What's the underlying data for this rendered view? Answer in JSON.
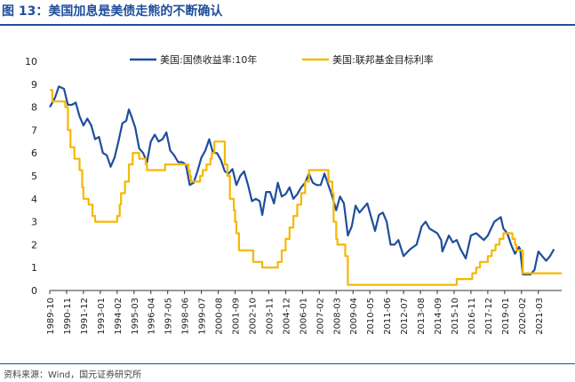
{
  "title": "图 13：美国加息是美债走熊的不断确认",
  "source": "资料来源：Wind，国元证券研究所",
  "chart_data": {
    "type": "line",
    "title": "",
    "xlabel": "",
    "ylabel": "",
    "ylim": [
      0,
      10
    ],
    "yticks": [
      0,
      1,
      2,
      3,
      4,
      5,
      6,
      7,
      8,
      9,
      10
    ],
    "xlim": [
      "1989-10",
      "2022-09"
    ],
    "xticks": [
      "1989-10",
      "1990-11",
      "1991-12",
      "1993-01",
      "1994-02",
      "1995-03",
      "1996-04",
      "1997-05",
      "1998-06",
      "1999-07",
      "2000-08",
      "2001-09",
      "2002-10",
      "2003-11",
      "2004-12",
      "2006-01",
      "2007-02",
      "2008-03",
      "2009-04",
      "2010-05",
      "2011-06",
      "2012-07",
      "2013-08",
      "2014-09",
      "2015-10",
      "2016-11",
      "2017-12",
      "2019-01",
      "2020-02",
      "2021-03"
    ],
    "grid": false,
    "legend_position": "top",
    "series": [
      {
        "name": "美国:国债收益率:10年",
        "color": "#1f4e9c",
        "points": [
          [
            "1989-10",
            8.0
          ],
          [
            "1990-02",
            8.4
          ],
          [
            "1990-05",
            8.9
          ],
          [
            "1990-09",
            8.8
          ],
          [
            "1990-12",
            8.1
          ],
          [
            "1991-03",
            8.1
          ],
          [
            "1991-06",
            8.2
          ],
          [
            "1991-09",
            7.6
          ],
          [
            "1991-12",
            7.2
          ],
          [
            "1992-03",
            7.5
          ],
          [
            "1992-06",
            7.2
          ],
          [
            "1992-09",
            6.6
          ],
          [
            "1992-12",
            6.7
          ],
          [
            "1993-03",
            6.0
          ],
          [
            "1993-06",
            5.9
          ],
          [
            "1993-09",
            5.4
          ],
          [
            "1993-12",
            5.8
          ],
          [
            "1994-03",
            6.5
          ],
          [
            "1994-06",
            7.3
          ],
          [
            "1994-09",
            7.4
          ],
          [
            "1994-11",
            7.9
          ],
          [
            "1995-01",
            7.6
          ],
          [
            "1995-04",
            7.1
          ],
          [
            "1995-07",
            6.2
          ],
          [
            "1995-10",
            6.0
          ],
          [
            "1996-01",
            5.6
          ],
          [
            "1996-04",
            6.5
          ],
          [
            "1996-07",
            6.8
          ],
          [
            "1996-10",
            6.5
          ],
          [
            "1997-01",
            6.6
          ],
          [
            "1997-04",
            6.9
          ],
          [
            "1997-07",
            6.1
          ],
          [
            "1997-10",
            5.9
          ],
          [
            "1998-01",
            5.6
          ],
          [
            "1998-04",
            5.6
          ],
          [
            "1998-07",
            5.5
          ],
          [
            "1998-10",
            4.6
          ],
          [
            "1999-01",
            4.7
          ],
          [
            "1999-04",
            5.2
          ],
          [
            "1999-07",
            5.8
          ],
          [
            "1999-10",
            6.1
          ],
          [
            "2000-01",
            6.6
          ],
          [
            "2000-04",
            6.0
          ],
          [
            "2000-07",
            6.0
          ],
          [
            "2000-10",
            5.7
          ],
          [
            "2001-01",
            5.2
          ],
          [
            "2001-04",
            5.1
          ],
          [
            "2001-07",
            5.3
          ],
          [
            "2001-10",
            4.6
          ],
          [
            "2002-01",
            5.0
          ],
          [
            "2002-04",
            5.2
          ],
          [
            "2002-07",
            4.6
          ],
          [
            "2002-10",
            3.9
          ],
          [
            "2003-01",
            4.0
          ],
          [
            "2003-04",
            3.9
          ],
          [
            "2003-06",
            3.3
          ],
          [
            "2003-09",
            4.3
          ],
          [
            "2003-12",
            4.3
          ],
          [
            "2004-03",
            3.8
          ],
          [
            "2004-06",
            4.7
          ],
          [
            "2004-09",
            4.1
          ],
          [
            "2004-12",
            4.2
          ],
          [
            "2005-03",
            4.5
          ],
          [
            "2005-06",
            4.0
          ],
          [
            "2005-09",
            4.2
          ],
          [
            "2005-12",
            4.5
          ],
          [
            "2006-03",
            4.7
          ],
          [
            "2006-06",
            5.1
          ],
          [
            "2006-09",
            4.7
          ],
          [
            "2006-12",
            4.6
          ],
          [
            "2007-03",
            4.6
          ],
          [
            "2007-06",
            5.1
          ],
          [
            "2007-09",
            4.6
          ],
          [
            "2007-12",
            4.1
          ],
          [
            "2008-03",
            3.5
          ],
          [
            "2008-06",
            4.1
          ],
          [
            "2008-09",
            3.8
          ],
          [
            "2008-12",
            2.4
          ],
          [
            "2009-03",
            2.8
          ],
          [
            "2009-06",
            3.7
          ],
          [
            "2009-09",
            3.4
          ],
          [
            "2009-12",
            3.6
          ],
          [
            "2010-03",
            3.8
          ],
          [
            "2010-06",
            3.2
          ],
          [
            "2010-09",
            2.6
          ],
          [
            "2010-12",
            3.3
          ],
          [
            "2011-03",
            3.4
          ],
          [
            "2011-06",
            3.0
          ],
          [
            "2011-09",
            2.0
          ],
          [
            "2011-12",
            2.0
          ],
          [
            "2012-03",
            2.2
          ],
          [
            "2012-07",
            1.5
          ],
          [
            "2012-12",
            1.8
          ],
          [
            "2013-05",
            2.0
          ],
          [
            "2013-09",
            2.8
          ],
          [
            "2013-12",
            3.0
          ],
          [
            "2014-03",
            2.7
          ],
          [
            "2014-09",
            2.5
          ],
          [
            "2014-12",
            2.2
          ],
          [
            "2015-01",
            1.7
          ],
          [
            "2015-06",
            2.4
          ],
          [
            "2015-09",
            2.1
          ],
          [
            "2015-12",
            2.2
          ],
          [
            "2016-03",
            1.8
          ],
          [
            "2016-07",
            1.4
          ],
          [
            "2016-11",
            2.4
          ],
          [
            "2017-03",
            2.5
          ],
          [
            "2017-09",
            2.2
          ],
          [
            "2017-12",
            2.4
          ],
          [
            "2018-05",
            3.0
          ],
          [
            "2018-10",
            3.2
          ],
          [
            "2018-12",
            2.7
          ],
          [
            "2019-03",
            2.5
          ],
          [
            "2019-06",
            2.0
          ],
          [
            "2019-09",
            1.6
          ],
          [
            "2019-12",
            1.9
          ],
          [
            "2020-01",
            1.8
          ],
          [
            "2020-03",
            0.7
          ],
          [
            "2020-06",
            0.7
          ],
          [
            "2020-09",
            0.7
          ],
          [
            "2020-12",
            0.9
          ],
          [
            "2021-03",
            1.7
          ],
          [
            "2021-06",
            1.5
          ],
          [
            "2021-09",
            1.3
          ],
          [
            "2021-12",
            1.5
          ],
          [
            "2022-03",
            1.8
          ]
        ]
      },
      {
        "name": "美国:联邦基金目标利率",
        "color": "#f5b800",
        "points": [
          [
            "1989-10",
            8.75
          ],
          [
            "1989-12",
            8.25
          ],
          [
            "1990-07",
            8.25
          ],
          [
            "1990-10",
            8.0
          ],
          [
            "1990-12",
            7.0
          ],
          [
            "1991-02",
            6.25
          ],
          [
            "1991-05",
            5.75
          ],
          [
            "1991-09",
            5.25
          ],
          [
            "1991-11",
            4.5
          ],
          [
            "1991-12",
            4.0
          ],
          [
            "1992-04",
            3.75
          ],
          [
            "1992-07",
            3.25
          ],
          [
            "1992-09",
            3.0
          ],
          [
            "1994-01",
            3.0
          ],
          [
            "1994-02",
            3.25
          ],
          [
            "1994-04",
            3.75
          ],
          [
            "1994-05",
            4.25
          ],
          [
            "1994-08",
            4.75
          ],
          [
            "1994-11",
            5.5
          ],
          [
            "1995-02",
            6.0
          ],
          [
            "1995-07",
            5.75
          ],
          [
            "1995-12",
            5.5
          ],
          [
            "1996-01",
            5.25
          ],
          [
            "1997-03",
            5.5
          ],
          [
            "1998-09",
            5.25
          ],
          [
            "1998-10",
            5.0
          ],
          [
            "1998-11",
            4.75
          ],
          [
            "1999-06",
            5.0
          ],
          [
            "1999-08",
            5.25
          ],
          [
            "1999-11",
            5.5
          ],
          [
            "2000-02",
            5.75
          ],
          [
            "2000-03",
            6.0
          ],
          [
            "2000-05",
            6.5
          ],
          [
            "2000-12",
            6.5
          ],
          [
            "2001-01",
            5.5
          ],
          [
            "2001-03",
            5.0
          ],
          [
            "2001-05",
            4.0
          ],
          [
            "2001-08",
            3.5
          ],
          [
            "2001-09",
            3.0
          ],
          [
            "2001-10",
            2.5
          ],
          [
            "2001-12",
            1.75
          ],
          [
            "2002-11",
            1.25
          ],
          [
            "2003-06",
            1.0
          ],
          [
            "2004-06",
            1.25
          ],
          [
            "2004-09",
            1.75
          ],
          [
            "2004-12",
            2.25
          ],
          [
            "2005-03",
            2.75
          ],
          [
            "2005-06",
            3.25
          ],
          [
            "2005-09",
            3.75
          ],
          [
            "2005-12",
            4.25
          ],
          [
            "2006-03",
            4.75
          ],
          [
            "2006-06",
            5.25
          ],
          [
            "2007-08",
            5.25
          ],
          [
            "2007-09",
            4.75
          ],
          [
            "2007-12",
            4.25
          ],
          [
            "2008-01",
            3.0
          ],
          [
            "2008-03",
            2.25
          ],
          [
            "2008-04",
            2.0
          ],
          [
            "2008-10",
            1.5
          ],
          [
            "2008-12",
            0.25
          ],
          [
            "2015-12",
            0.5
          ],
          [
            "2016-12",
            0.75
          ],
          [
            "2017-03",
            1.0
          ],
          [
            "2017-06",
            1.25
          ],
          [
            "2017-12",
            1.5
          ],
          [
            "2018-03",
            1.75
          ],
          [
            "2018-06",
            2.0
          ],
          [
            "2018-09",
            2.25
          ],
          [
            "2018-12",
            2.5
          ],
          [
            "2019-07",
            2.25
          ],
          [
            "2019-09",
            2.0
          ],
          [
            "2019-10",
            1.75
          ],
          [
            "2020-03",
            0.75
          ],
          [
            "2022-09",
            0.75
          ]
        ]
      }
    ]
  }
}
